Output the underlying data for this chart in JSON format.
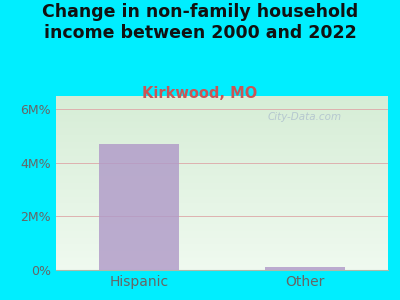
{
  "title": "Change in non-family household\nincome between 2000 and 2022",
  "subtitle": "Kirkwood, MO",
  "categories": [
    "Hispanic",
    "Other"
  ],
  "values": [
    4700000,
    120000
  ],
  "bar_color": "#b09ac8",
  "title_fontsize": 12.5,
  "subtitle_fontsize": 10.5,
  "subtitle_color": "#cc5555",
  "title_color": "#111111",
  "background_outer": "#00eeff",
  "background_inner_left_bottom": "#eaf5e8",
  "background_inner_right_top": "#e8f0ec",
  "ylim": [
    0,
    6500000
  ],
  "yticks": [
    0,
    2000000,
    4000000,
    6000000
  ],
  "ytick_labels": [
    "0%",
    "2M%",
    "4M%",
    "6M%"
  ],
  "watermark": "City-Data.com",
  "grid_color": "#ddaaaa",
  "tick_color": "#666666",
  "xlabel_fontsize": 10
}
